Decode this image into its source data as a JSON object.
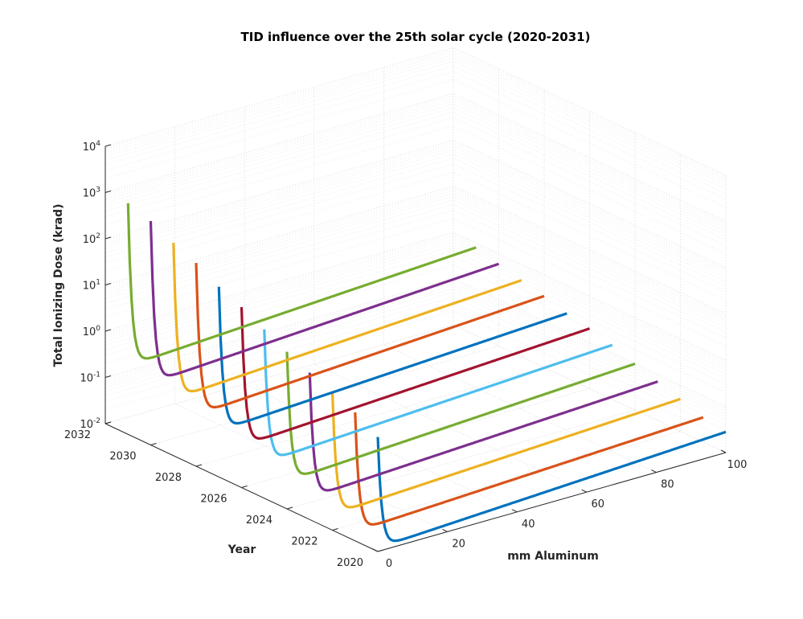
{
  "chart_data": {
    "type": "line",
    "view": "3d",
    "title": "TID influence over the 25th solar cycle (2020-2031)",
    "xlabel": "mm Aluminum",
    "ylabel": "Year",
    "zlabel": "Total Ionizing Dose (krad)",
    "xlim": [
      0,
      100
    ],
    "ylim": [
      2020,
      2032
    ],
    "zlim": [
      0.01,
      10000
    ],
    "zscale": "log",
    "grid": true,
    "x_ticks": [
      "0",
      "20",
      "40",
      "60",
      "80",
      "100"
    ],
    "y_ticks": [
      "2020",
      "2022",
      "2024",
      "2026",
      "2028",
      "2030",
      "2032"
    ],
    "z_ticks": [
      {
        "base": "10",
        "exp": "-2"
      },
      {
        "base": "10",
        "exp": "-1"
      },
      {
        "base": "10",
        "exp": "0"
      },
      {
        "base": "10",
        "exp": "1"
      },
      {
        "base": "10",
        "exp": "2"
      },
      {
        "base": "10",
        "exp": "3"
      },
      {
        "base": "10",
        "exp": "4"
      }
    ],
    "series": [
      {
        "year": 2020,
        "color": "#0072BD",
        "dose_at_0mm": 3,
        "min_dose": 0.012,
        "dose_at_100mm": 0.028
      },
      {
        "year": 2021,
        "color": "#D95319",
        "dose_at_0mm": 6,
        "min_dose": 0.016,
        "dose_at_100mm": 0.034
      },
      {
        "year": 2022,
        "color": "#EDB120",
        "dose_at_0mm": 10,
        "min_dose": 0.022,
        "dose_at_100mm": 0.05
      },
      {
        "year": 2023,
        "color": "#7E2F8E",
        "dose_at_0mm": 15,
        "min_dose": 0.03,
        "dose_at_100mm": 0.07
      },
      {
        "year": 2024,
        "color": "#77AC30",
        "dose_at_0mm": 25,
        "min_dose": 0.04,
        "dose_at_100mm": 0.1
      },
      {
        "year": 2025,
        "color": "#4DBEEE",
        "dose_at_0mm": 45,
        "min_dose": 0.06,
        "dose_at_100mm": 0.15
      },
      {
        "year": 2026,
        "color": "#A2142F",
        "dose_at_0mm": 80,
        "min_dose": 0.08,
        "dose_at_100mm": 0.2
      },
      {
        "year": 2027,
        "color": "#0072BD",
        "dose_at_0mm": 130,
        "min_dose": 0.1,
        "dose_at_100mm": 0.25
      },
      {
        "year": 2028,
        "color": "#D95319",
        "dose_at_0mm": 250,
        "min_dose": 0.13,
        "dose_at_100mm": 0.35
      },
      {
        "year": 2029,
        "color": "#EDB120",
        "dose_at_0mm": 400,
        "min_dose": 0.17,
        "dose_at_100mm": 0.45
      },
      {
        "year": 2030,
        "color": "#7E2F8E",
        "dose_at_0mm": 700,
        "min_dose": 0.22,
        "dose_at_100mm": 0.6
      },
      {
        "year": 2031,
        "color": "#77AC30",
        "dose_at_0mm": 1000,
        "min_dose": 0.3,
        "dose_at_100mm": 0.8
      }
    ]
  }
}
